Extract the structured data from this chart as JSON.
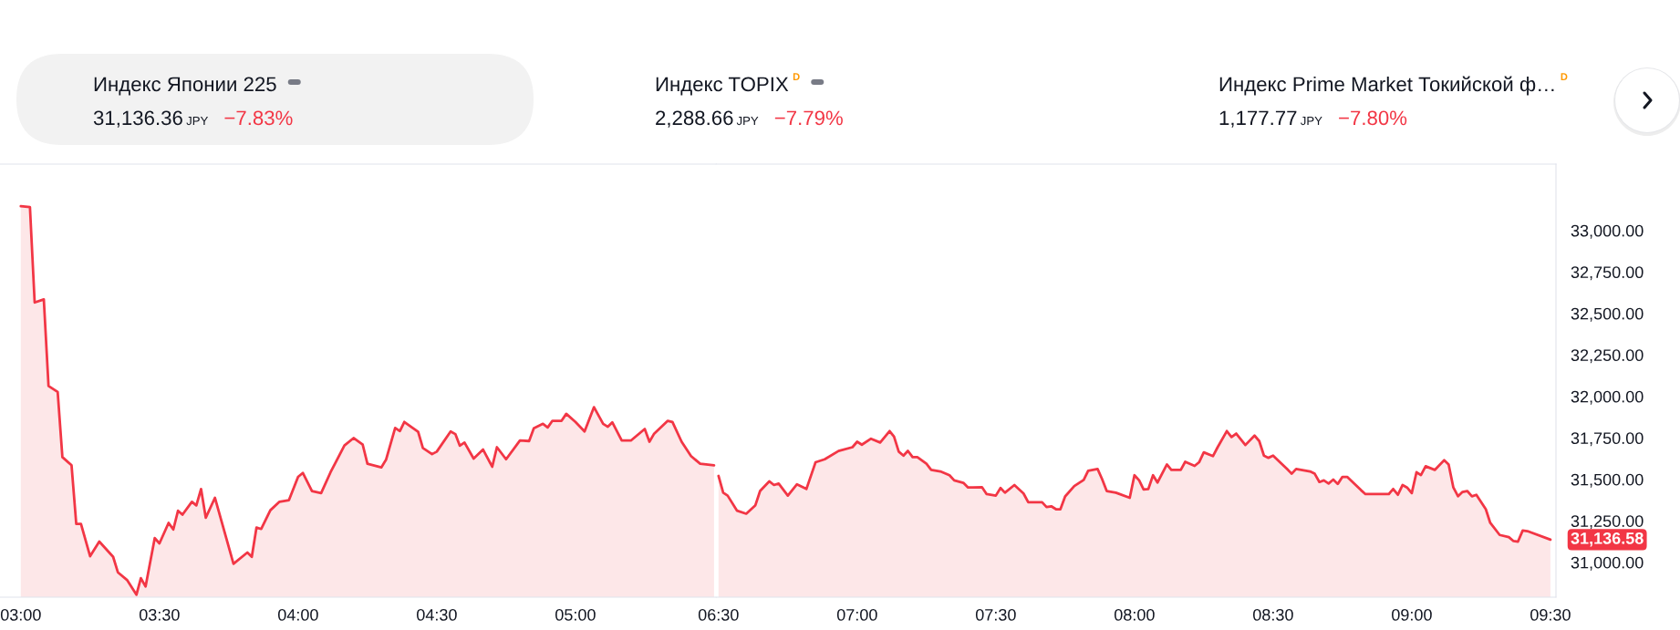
{
  "chart_data": [
    {
      "type": "other",
      "annotations": [
        "Индекс Японии 225",
        "31,136.36",
        "JPY",
        "−7.83%",
        "Индекс TOPIX",
        "D",
        "2,288.66",
        "JPY",
        "−7.79%",
        "Индекс Prime Market Токийской ф…",
        "D",
        "1,177.77",
        "JPY",
        "−7.80%"
      ]
    },
    {
      "type": "area",
      "color": "#f23645",
      "tick_labels": "x",
      "x": [
        3.0,
        3.033,
        3.05,
        3.083,
        3.1,
        3.133,
        3.15,
        3.183,
        3.2,
        3.217,
        3.25,
        3.283,
        3.333,
        3.35,
        3.383,
        3.417,
        3.433,
        3.45,
        3.483,
        3.5,
        3.533,
        3.55,
        3.567,
        3.583,
        3.617,
        3.633,
        3.65,
        3.667,
        3.7,
        3.767,
        3.817,
        3.833,
        3.85,
        3.867,
        3.9,
        3.933,
        3.967,
        4.0,
        4.017,
        4.05,
        4.083,
        4.117,
        4.167,
        4.2,
        4.233,
        4.25,
        4.3,
        4.317,
        4.35,
        4.367,
        4.383,
        4.433,
        4.45,
        4.483,
        4.5,
        4.55,
        4.567,
        4.583,
        4.6,
        4.633,
        4.667,
        4.7,
        4.717,
        4.75,
        4.8,
        4.833,
        4.85,
        4.883,
        4.9,
        4.917,
        4.95,
        4.967,
        5.0,
        5.033,
        5.067,
        5.1,
        5.117,
        5.133,
        5.167,
        5.2,
        5.25,
        5.267,
        5.283,
        5.333,
        5.35,
        5.383,
        5.417,
        5.45,
        5.5
      ],
      "values": [
        33146,
        33141,
        32566,
        32585,
        32063,
        32027,
        31634,
        31585,
        31232,
        31232,
        31037,
        31125,
        31033,
        30940,
        30894,
        30805,
        30905,
        30854,
        31146,
        31114,
        31238,
        31198,
        31311,
        31287,
        31365,
        31343,
        31442,
        31269,
        31389,
        30991,
        31059,
        31033,
        31210,
        31201,
        31314,
        31365,
        31375,
        31515,
        31539,
        31430,
        31417,
        31543,
        31704,
        31749,
        31709,
        31594,
        31572,
        31618,
        31810,
        31791,
        31846,
        31786,
        31689,
        31652,
        31667,
        31789,
        31773,
        31703,
        31722,
        31625,
        31680,
        31576,
        31694,
        31621,
        31734,
        31731,
        31808,
        31835,
        31813,
        31853,
        31853,
        31895,
        31846,
        31789,
        31935,
        31835,
        31817,
        31844,
        31734,
        31734,
        31804,
        31727,
        31773,
        31853,
        31846,
        31727,
        31640,
        31594,
        31585
      ],
      "xlim": [
        2.925,
        5.508
      ],
      "xticks": [
        {
          "value": 3,
          "label": "03:00"
        },
        {
          "value": 3.5,
          "label": "03:30"
        },
        {
          "value": 4,
          "label": "04:00"
        },
        {
          "value": 4.5,
          "label": "04:30"
        },
        {
          "value": 5,
          "label": "05:00"
        }
      ],
      "ylim": [
        30790,
        33400
      ]
    },
    {
      "type": "area",
      "color": "#f23645",
      "x": [
        6.5,
        6.517,
        6.533,
        6.567,
        6.6,
        6.633,
        6.65,
        6.683,
        6.7,
        6.717,
        6.75,
        6.783,
        6.817,
        6.85,
        6.883,
        6.933,
        6.983,
        7.0,
        7.017,
        7.05,
        7.083,
        7.117,
        7.133,
        7.15,
        7.167,
        7.183,
        7.2,
        7.217,
        7.25,
        7.267,
        7.3,
        7.333,
        7.35,
        7.383,
        7.4,
        7.417,
        7.45,
        7.467,
        7.5,
        7.517,
        7.533,
        7.567,
        7.6,
        7.617,
        7.667,
        7.683,
        7.7,
        7.717,
        7.733,
        7.75,
        7.783,
        7.817,
        7.833,
        7.867,
        7.883,
        7.9,
        7.933,
        7.983,
        8.0,
        8.017,
        8.033,
        8.05,
        8.067,
        8.083,
        8.117,
        8.133,
        8.167,
        8.183,
        8.217,
        8.233,
        8.25,
        8.283,
        8.3,
        8.333,
        8.35,
        8.367,
        8.4,
        8.433,
        8.45,
        8.467,
        8.483,
        8.5,
        8.55,
        8.567,
        8.583,
        8.633,
        8.65,
        8.667,
        8.683,
        8.7,
        8.717,
        8.733,
        8.75,
        8.767,
        8.817,
        8.833,
        8.883,
        8.917,
        8.933,
        8.95,
        8.967,
        8.983,
        9.0,
        9.017,
        9.033,
        9.05,
        9.083,
        9.117,
        9.133,
        9.15,
        9.167,
        9.183,
        9.2,
        9.217,
        9.233,
        9.267,
        9.283,
        9.317,
        9.35,
        9.367,
        9.383,
        9.4,
        9.417,
        9.5
      ],
      "values": [
        31521,
        31420,
        31402,
        31311,
        31293,
        31344,
        31430,
        31488,
        31466,
        31475,
        31402,
        31470,
        31442,
        31603,
        31621,
        31671,
        31694,
        31727,
        31709,
        31745,
        31722,
        31791,
        31758,
        31667,
        31643,
        31672,
        31634,
        31634,
        31594,
        31557,
        31548,
        31525,
        31494,
        31479,
        31451,
        31451,
        31453,
        31411,
        31402,
        31448,
        31420,
        31466,
        31415,
        31362,
        31362,
        31333,
        31338,
        31320,
        31320,
        31397,
        31460,
        31497,
        31552,
        31563,
        31503,
        31430,
        31420,
        31389,
        31525,
        31494,
        31439,
        31442,
        31525,
        31481,
        31590,
        31557,
        31557,
        31606,
        31581,
        31603,
        31663,
        31640,
        31694,
        31791,
        31755,
        31776,
        31707,
        31764,
        31731,
        31643,
        31630,
        31643,
        31563,
        31534,
        31563,
        31548,
        31534,
        31484,
        31494,
        31475,
        31499,
        31472,
        31515,
        31515,
        31435,
        31411,
        31411,
        31411,
        31442,
        31407,
        31466,
        31451,
        31417,
        31543,
        31526,
        31579,
        31557,
        31616,
        31590,
        31451,
        31398,
        31424,
        31430,
        31398,
        31407,
        31320,
        31238,
        31165,
        31152,
        31128,
        31125,
        31192,
        31188,
        31136.58
      ],
      "xlim": [
        6.492,
        9.52
      ],
      "xticks": [
        {
          "value": 6.5,
          "label": "06:30"
        },
        {
          "value": 7,
          "label": "07:00"
        },
        {
          "value": 7.5,
          "label": "07:30"
        },
        {
          "value": 8,
          "label": "08:00"
        },
        {
          "value": 8.5,
          "label": "08:30"
        },
        {
          "value": 9,
          "label": "09:00"
        },
        {
          "value": 9.5,
          "label": "09:30"
        }
      ],
      "ylim": [
        30790,
        33400
      ],
      "yticks": [
        {
          "value": 31000,
          "label": "31,000.00"
        },
        {
          "value": 31250,
          "label": "31,250.00"
        },
        {
          "value": 31500,
          "label": "31,500.00"
        },
        {
          "value": 31750,
          "label": "31,750.00"
        },
        {
          "value": 32000,
          "label": "32,000.00"
        },
        {
          "value": 32250,
          "label": "32,250.00"
        },
        {
          "value": 32500,
          "label": "32,500.00"
        },
        {
          "value": 32750,
          "label": "32,750.00"
        },
        {
          "value": 33000,
          "label": "33,000.00"
        }
      ],
      "annotations": [
        {
          "text": "31,136.58",
          "x": 9.5,
          "y": 31136.58
        }
      ]
    }
  ]
}
